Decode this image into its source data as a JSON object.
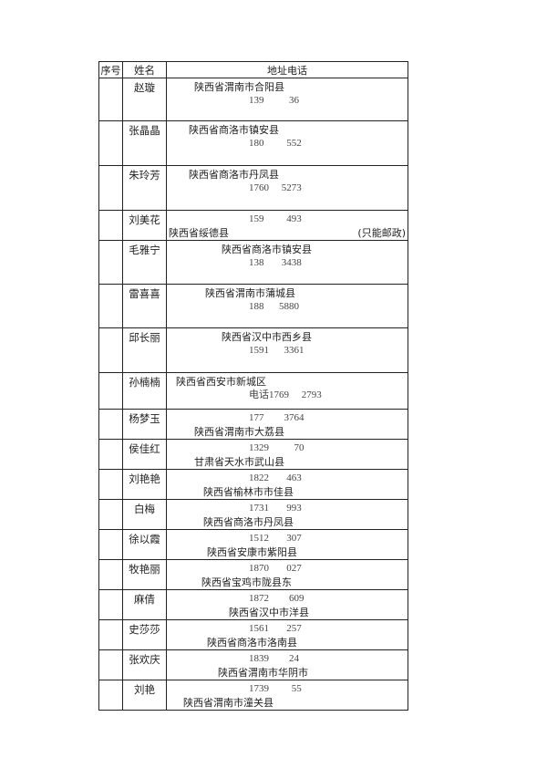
{
  "header": {
    "no": "序号",
    "name": "姓名",
    "addr": "地址电话"
  },
  "rows": [
    {
      "name": "赵璇",
      "lines": [
        {
          "t": "陕西省渭南市合阳县",
          "p": false
        },
        {
          "t": "139          36",
          "p": true
        }
      ]
    },
    {
      "name": "张晶晶",
      "lines": [
        {
          "t": "陕西省商洛市镇安县",
          "p": false
        },
        {
          "t": "180         552",
          "p": true
        }
      ]
    },
    {
      "name": "朱玲芳",
      "lines": [
        {
          "t": "陕西省商洛市丹凤县",
          "p": false
        },
        {
          "t": "1760     5273",
          "p": true
        }
      ]
    },
    {
      "name": "刘美花",
      "lines": [
        {
          "t": "159         493",
          "p": true
        },
        {
          "t": "陕西省绥德县",
          "p": false,
          "extra": "(只能邮政)"
        }
      ]
    },
    {
      "name": "毛雅宁",
      "lines": [
        {
          "t": "陕西省商洛市镇安县",
          "p": false
        },
        {
          "t": "138       3438",
          "p": true
        }
      ]
    },
    {
      "name": "雷喜喜",
      "lines": [
        {
          "t": "陕西省渭南市蒲城县",
          "p": false
        },
        {
          "t": "188      5880",
          "p": true
        }
      ]
    },
    {
      "name": "邱长丽",
      "lines": [
        {
          "t": "陕西省汉中市西乡县",
          "p": false
        },
        {
          "t": "1591      3361",
          "p": true
        }
      ]
    },
    {
      "name": "孙楠楠",
      "lines": [
        {
          "t": "陕西省西安市新城区",
          "p": false
        },
        {
          "t": "电话1769     2793",
          "p": true
        }
      ]
    },
    {
      "name": "杨梦玉",
      "lines": [
        {
          "t": "177        3764",
          "p": true
        },
        {
          "t": "陕西省渭南市大荔县",
          "p": false
        }
      ]
    },
    {
      "name": "侯佳红",
      "lines": [
        {
          "t": "1329          70",
          "p": true
        },
        {
          "t": "甘肃省天水市武山县",
          "p": false
        }
      ]
    },
    {
      "name": "刘艳艳",
      "lines": [
        {
          "t": "1822       463",
          "p": true
        },
        {
          "t": "陕西省榆林市市佳县",
          "p": false
        }
      ]
    },
    {
      "name": "白梅",
      "lines": [
        {
          "t": "1731       993",
          "p": true
        },
        {
          "t": "陕西省商洛市丹凤县",
          "p": false
        }
      ]
    },
    {
      "name": "徐以霞",
      "lines": [
        {
          "t": "1512       307",
          "p": true
        },
        {
          "t": "陕西省安康市紫阳县",
          "p": false
        }
      ]
    },
    {
      "name": "牧艳丽",
      "lines": [
        {
          "t": "1870       027",
          "p": true
        },
        {
          "t": "陕西省宝鸡市陇县东",
          "p": false
        }
      ]
    },
    {
      "name": "麻倩",
      "lines": [
        {
          "t": "1872        609",
          "p": true
        },
        {
          "t": "陕西省汉中市洋县",
          "p": false
        }
      ]
    },
    {
      "name": "史莎莎",
      "lines": [
        {
          "t": "1561       257",
          "p": true
        },
        {
          "t": "陕西省商洛市洛南县",
          "p": false
        }
      ]
    },
    {
      "name": "张欢庆",
      "lines": [
        {
          "t": "1839        24",
          "p": true
        },
        {
          "t": "陕西省渭南市华阴市",
          "p": false
        }
      ]
    },
    {
      "name": "刘艳",
      "lines": [
        {
          "t": "1739         55",
          "p": true
        },
        {
          "t": "陕西省渭南市潼关县",
          "p": false
        }
      ]
    }
  ]
}
